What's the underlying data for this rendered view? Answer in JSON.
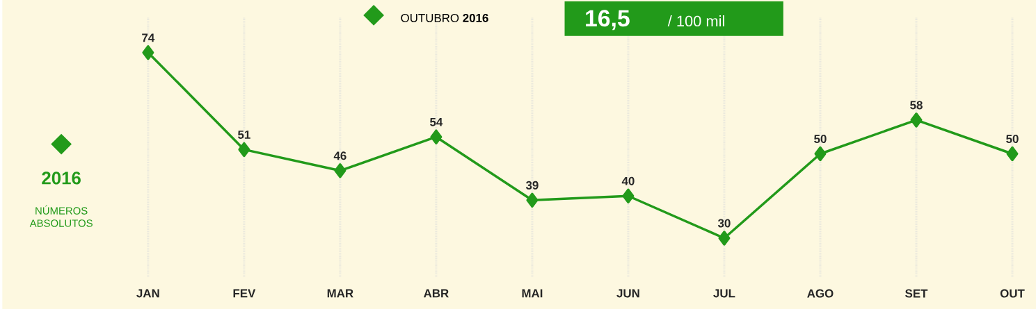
{
  "chart_data": {
    "type": "line",
    "categories": [
      "JAN",
      "FEV",
      "MAR",
      "ABR",
      "MAI",
      "JUN",
      "JUL",
      "AGO",
      "SET",
      "OUT"
    ],
    "series": [
      {
        "name": "2016",
        "color": "#229a1a",
        "values": [
          74,
          51,
          46,
          54,
          39,
          40,
          30,
          50,
          58,
          50
        ]
      }
    ],
    "data_labels": true,
    "marker": "diamond",
    "line_style": "solid",
    "grid": "x",
    "legend": "left",
    "annotations": [
      "NÚMEROS ABSOLUTOS",
      "OUTUBRO **2016**",
      "16,5",
      "/ 100 mil"
    ]
  }
}
